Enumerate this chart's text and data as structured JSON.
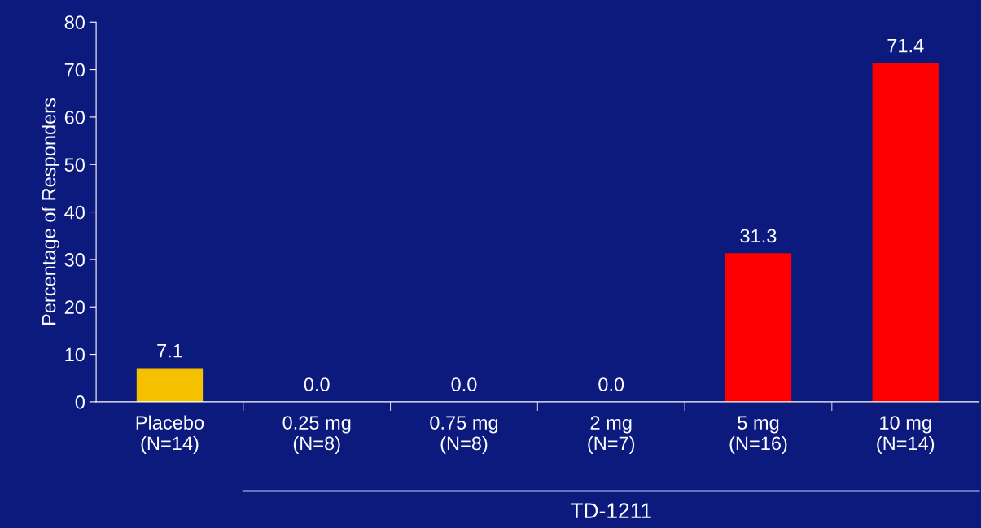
{
  "chart_data": {
    "type": "bar",
    "ylabel": "Percentage of Responders",
    "xlabel": "TD-1211",
    "categories": [
      "Placebo\n(N=14)",
      "0.25 mg\n(N=8)",
      "0.75 mg\n(N=8)",
      "2 mg\n(N=7)",
      "5 mg\n(N=16)",
      "10 mg\n(N=14)"
    ],
    "values": [
      7.1,
      0.0,
      0.0,
      0.0,
      31.3,
      71.4
    ],
    "colors": [
      "#f5c000",
      "#ff0000",
      "#ff0000",
      "#ff0000",
      "#ff0000",
      "#ff0000"
    ],
    "value_labels": [
      "7.1",
      "0.0",
      "0.0",
      "0.0",
      "31.3",
      "71.4"
    ],
    "ylim": [
      0,
      80
    ],
    "yticks": [
      0,
      10,
      20,
      30,
      40,
      50,
      60,
      70,
      80
    ],
    "grid": false,
    "legend": false
  }
}
